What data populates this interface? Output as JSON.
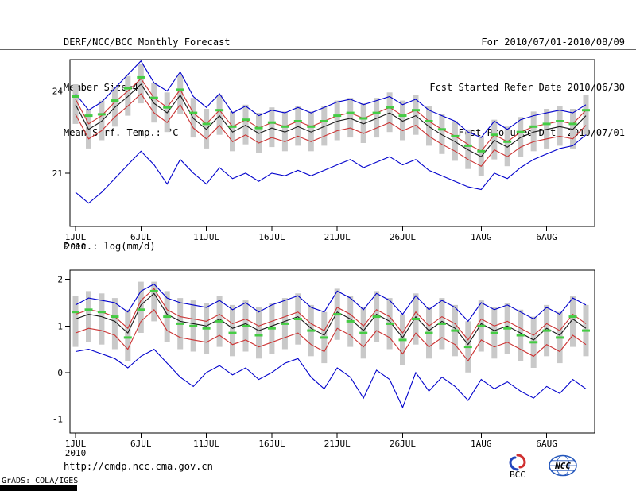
{
  "header": {
    "title": "DERF/NCC/BCC Monthly Forecast",
    "member_size": "Member Size=40",
    "forecast_range": "For 2010/07/01-2010/08/09",
    "refer_date": "Fcst Started Refer Date 2010/06/30",
    "produced_date": "Fcst Produced Date 2010/07/01"
  },
  "footer": {
    "url": "http://cmdp.ncc.cma.gov.cn",
    "grads_credit": "GrADS: COLA/IGES",
    "logos": [
      {
        "id": "bcc",
        "label": "BCC"
      },
      {
        "id": "ncc",
        "label": "NCC"
      }
    ]
  },
  "chart_data": [
    {
      "type": "line",
      "title": "Mean Surf. Temp.: °C",
      "n_days": 40,
      "ylim": [
        19.05,
        25.15
      ],
      "y_ticks": [
        {
          "value": 21,
          "label": "21"
        },
        {
          "value": 24,
          "label": "24"
        }
      ],
      "x_ticks": [
        {
          "day": 1,
          "label": "1JUL",
          "sublabel": "2010"
        },
        {
          "day": 6,
          "label": "6JUL"
        },
        {
          "day": 11,
          "label": "11JUL"
        },
        {
          "day": 16,
          "label": "16JUL"
        },
        {
          "day": 21,
          "label": "21JUL"
        },
        {
          "day": 26,
          "label": "26JUL"
        },
        {
          "day": 32,
          "label": "1AUG"
        },
        {
          "day": 37,
          "label": "6AUG"
        }
      ],
      "bars": {
        "name": "ensemble-spread-bar",
        "color": "#c9c9c9",
        "high": [
          24.25,
          23.35,
          23.65,
          24.15,
          24.55,
          25.0,
          24.3,
          23.95,
          24.6,
          23.75,
          23.35,
          23.85,
          23.25,
          23.5,
          23.2,
          23.4,
          23.25,
          23.45,
          23.25,
          23.45,
          23.65,
          23.75,
          23.55,
          23.75,
          23.95,
          23.65,
          23.85,
          23.45,
          23.15,
          22.9,
          22.6,
          22.35,
          22.95,
          22.7,
          23.05,
          23.25,
          23.35,
          23.45,
          23.35,
          23.85
        ],
        "low": [
          22.8,
          21.9,
          22.2,
          22.7,
          23.1,
          23.55,
          22.85,
          22.5,
          23.15,
          22.3,
          21.9,
          22.4,
          21.8,
          22.05,
          21.75,
          21.95,
          21.8,
          22.0,
          21.8,
          22.0,
          22.2,
          22.3,
          22.1,
          22.3,
          22.5,
          22.2,
          22.4,
          22.0,
          21.7,
          21.45,
          21.15,
          20.9,
          21.5,
          21.25,
          21.6,
          21.8,
          21.9,
          22.0,
          21.9,
          22.4
        ]
      },
      "series": [
        {
          "name": "max",
          "color": "#0000cc",
          "values": [
            23.9,
            23.3,
            23.6,
            24.1,
            24.6,
            25.1,
            24.3,
            24.0,
            24.7,
            23.8,
            23.4,
            23.9,
            23.2,
            23.45,
            23.1,
            23.3,
            23.2,
            23.4,
            23.2,
            23.4,
            23.6,
            23.7,
            23.5,
            23.65,
            23.8,
            23.5,
            23.7,
            23.3,
            23.1,
            22.9,
            22.5,
            22.3,
            22.9,
            22.6,
            22.95,
            23.1,
            23.2,
            23.3,
            23.2,
            23.5
          ]
        },
        {
          "name": "upper-quartile",
          "color": "#cc3333",
          "values": [
            23.7,
            22.8,
            23.1,
            23.6,
            24.0,
            24.45,
            23.75,
            23.4,
            24.05,
            23.2,
            22.8,
            23.3,
            22.7,
            22.95,
            22.65,
            22.85,
            22.7,
            22.9,
            22.7,
            22.9,
            23.1,
            23.2,
            23.0,
            23.2,
            23.4,
            23.1,
            23.3,
            22.9,
            22.6,
            22.35,
            22.05,
            21.8,
            22.4,
            22.15,
            22.5,
            22.7,
            22.8,
            22.9,
            22.8,
            23.3
          ]
        },
        {
          "name": "ensemble-mean",
          "color": "#1a1a1a",
          "values": [
            23.5,
            22.6,
            22.9,
            23.4,
            23.8,
            24.25,
            23.55,
            23.2,
            23.85,
            23.0,
            22.6,
            23.1,
            22.5,
            22.75,
            22.45,
            22.65,
            22.5,
            22.7,
            22.5,
            22.7,
            22.9,
            23.0,
            22.8,
            23.0,
            23.2,
            22.9,
            23.1,
            22.7,
            22.4,
            22.15,
            21.85,
            21.6,
            22.2,
            21.95,
            22.3,
            22.5,
            22.6,
            22.7,
            22.6,
            23.1
          ]
        },
        {
          "name": "lower-quartile",
          "color": "#cc3333",
          "values": [
            23.15,
            22.25,
            22.55,
            23.05,
            23.45,
            23.9,
            23.2,
            22.85,
            23.5,
            22.65,
            22.25,
            22.75,
            22.15,
            22.4,
            22.1,
            22.3,
            22.15,
            22.35,
            22.15,
            22.35,
            22.55,
            22.65,
            22.45,
            22.65,
            22.85,
            22.55,
            22.75,
            22.35,
            22.05,
            21.8,
            21.5,
            21.25,
            21.85,
            21.6,
            21.95,
            22.15,
            22.25,
            22.35,
            22.25,
            22.75
          ]
        },
        {
          "name": "min",
          "color": "#0000cc",
          "values": [
            20.3,
            19.9,
            20.3,
            20.8,
            21.3,
            21.8,
            21.3,
            20.6,
            21.5,
            21.0,
            20.6,
            21.2,
            20.8,
            21.0,
            20.7,
            21.0,
            20.9,
            21.1,
            20.9,
            21.1,
            21.3,
            21.5,
            21.2,
            21.4,
            21.6,
            21.3,
            21.5,
            21.1,
            20.9,
            20.7,
            20.5,
            20.4,
            21.0,
            20.8,
            21.2,
            21.5,
            21.7,
            21.9,
            22.0,
            22.4
          ]
        }
      ],
      "markers": {
        "name": "green-dash-marker",
        "color": "#44cc44",
        "values": [
          23.8,
          23.1,
          23.15,
          23.65,
          24.1,
          24.5,
          23.75,
          23.4,
          24.05,
          23.2,
          22.8,
          23.3,
          22.7,
          22.95,
          22.65,
          22.85,
          22.7,
          22.9,
          22.7,
          22.9,
          23.1,
          23.2,
          23.0,
          23.2,
          23.4,
          23.1,
          23.3,
          22.9,
          22.6,
          22.35,
          22.0,
          21.8,
          22.4,
          22.15,
          22.5,
          22.7,
          22.8,
          22.9,
          22.8,
          23.3
        ]
      }
    },
    {
      "type": "line",
      "title": "Prec.: log(mm/d)",
      "n_days": 40,
      "ylim": [
        -1.3,
        2.2
      ],
      "y_ticks": [
        {
          "value": -1,
          "label": "-1"
        },
        {
          "value": 0,
          "label": "0"
        },
        {
          "value": 1,
          "label": "1"
        },
        {
          "value": 2,
          "label": "2"
        }
      ],
      "x_ticks": [
        {
          "day": 1,
          "label": "1JUL",
          "sublabel": "2010"
        },
        {
          "day": 6,
          "label": "6JUL"
        },
        {
          "day": 11,
          "label": "11JUL"
        },
        {
          "day": 16,
          "label": "16JUL"
        },
        {
          "day": 21,
          "label": "21JUL"
        },
        {
          "day": 26,
          "label": "26JUL"
        },
        {
          "day": 32,
          "label": "1AUG"
        },
        {
          "day": 37,
          "label": "6AUG"
        }
      ],
      "bars": {
        "name": "ensemble-spread-bar",
        "color": "#c9c9c9",
        "high": [
          1.65,
          1.75,
          1.7,
          1.6,
          1.35,
          1.95,
          1.95,
          1.75,
          1.6,
          1.55,
          1.5,
          1.65,
          1.45,
          1.55,
          1.4,
          1.5,
          1.6,
          1.7,
          1.45,
          1.3,
          1.8,
          1.65,
          1.4,
          1.75,
          1.6,
          1.25,
          1.7,
          1.4,
          1.6,
          1.45,
          1.1,
          1.55,
          1.4,
          1.5,
          1.35,
          1.2,
          1.45,
          1.3,
          1.65,
          1.45
        ],
        "low": [
          0.55,
          0.65,
          0.6,
          0.5,
          0.25,
          0.85,
          1.1,
          0.65,
          0.5,
          0.45,
          0.4,
          0.55,
          0.35,
          0.45,
          0.3,
          0.4,
          0.5,
          0.6,
          0.35,
          0.2,
          0.7,
          0.55,
          0.3,
          0.65,
          0.5,
          0.15,
          0.6,
          0.3,
          0.5,
          0.35,
          0.0,
          0.45,
          0.3,
          0.4,
          0.25,
          0.1,
          0.35,
          0.2,
          0.55,
          0.35
        ]
      },
      "series": [
        {
          "name": "max",
          "color": "#0000cc",
          "values": [
            1.45,
            1.6,
            1.55,
            1.5,
            1.3,
            1.75,
            1.9,
            1.6,
            1.5,
            1.45,
            1.4,
            1.55,
            1.35,
            1.5,
            1.3,
            1.45,
            1.55,
            1.65,
            1.4,
            1.3,
            1.75,
            1.6,
            1.35,
            1.7,
            1.55,
            1.25,
            1.65,
            1.35,
            1.55,
            1.4,
            1.1,
            1.5,
            1.35,
            1.45,
            1.3,
            1.15,
            1.4,
            1.25,
            1.6,
            1.45
          ]
        },
        {
          "name": "upper-quartile",
          "color": "#cc3333",
          "values": [
            1.25,
            1.35,
            1.3,
            1.2,
            0.95,
            1.55,
            1.8,
            1.35,
            1.2,
            1.15,
            1.1,
            1.25,
            1.05,
            1.15,
            1.0,
            1.1,
            1.2,
            1.3,
            1.05,
            0.9,
            1.4,
            1.25,
            1.0,
            1.35,
            1.2,
            0.85,
            1.3,
            1.0,
            1.2,
            1.05,
            0.7,
            1.15,
            1.0,
            1.1,
            0.95,
            0.8,
            1.05,
            0.9,
            1.25,
            1.05
          ]
        },
        {
          "name": "ensemble-mean",
          "color": "#1a1a1a",
          "values": [
            1.15,
            1.25,
            1.2,
            1.1,
            0.85,
            1.45,
            1.7,
            1.25,
            1.1,
            1.05,
            1.0,
            1.15,
            0.95,
            1.05,
            0.9,
            1.0,
            1.1,
            1.2,
            0.95,
            0.8,
            1.3,
            1.15,
            0.9,
            1.25,
            1.1,
            0.75,
            1.2,
            0.9,
            1.1,
            0.95,
            0.6,
            1.05,
            0.9,
            1.0,
            0.85,
            0.7,
            0.95,
            0.8,
            1.15,
            0.95
          ]
        },
        {
          "name": "lower-quartile",
          "color": "#cc3333",
          "values": [
            0.85,
            0.95,
            0.9,
            0.8,
            0.5,
            1.1,
            1.35,
            0.9,
            0.75,
            0.7,
            0.65,
            0.8,
            0.6,
            0.7,
            0.55,
            0.65,
            0.75,
            0.85,
            0.6,
            0.45,
            0.95,
            0.8,
            0.55,
            0.9,
            0.75,
            0.4,
            0.85,
            0.55,
            0.75,
            0.6,
            0.25,
            0.7,
            0.55,
            0.65,
            0.5,
            0.35,
            0.6,
            0.45,
            0.8,
            0.6
          ]
        },
        {
          "name": "min",
          "color": "#0000cc",
          "values": [
            0.45,
            0.5,
            0.4,
            0.3,
            0.1,
            0.35,
            0.5,
            0.2,
            -0.1,
            -0.3,
            0.0,
            0.15,
            -0.05,
            0.1,
            -0.15,
            0.0,
            0.2,
            0.3,
            -0.1,
            -0.35,
            0.1,
            -0.1,
            -0.55,
            0.05,
            -0.15,
            -0.75,
            0.0,
            -0.4,
            -0.1,
            -0.3,
            -0.6,
            -0.15,
            -0.35,
            -0.2,
            -0.4,
            -0.55,
            -0.3,
            -0.45,
            -0.15,
            -0.35
          ]
        }
      ],
      "markers": {
        "name": "green-dash-marker",
        "color": "#44cc44",
        "values": [
          1.3,
          1.35,
          1.3,
          1.2,
          0.75,
          1.35,
          1.75,
          1.2,
          1.05,
          1.0,
          0.95,
          1.1,
          0.85,
          1.0,
          0.8,
          0.95,
          1.05,
          1.15,
          0.9,
          0.75,
          1.25,
          1.1,
          0.85,
          1.2,
          1.05,
          0.7,
          1.15,
          0.85,
          1.05,
          0.9,
          0.55,
          1.0,
          0.85,
          0.95,
          0.8,
          0.65,
          0.9,
          0.75,
          1.2,
          0.9
        ]
      }
    }
  ]
}
